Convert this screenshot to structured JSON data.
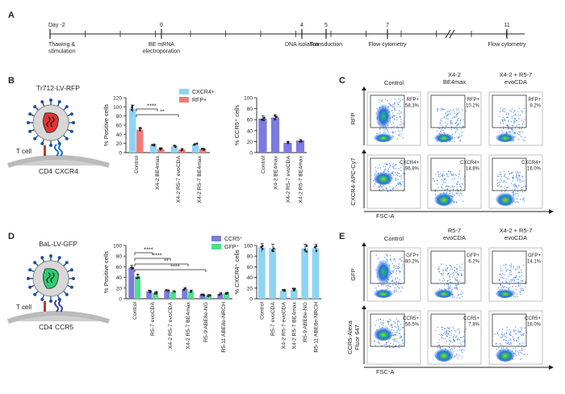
{
  "panel_a": {
    "label": "A",
    "timeline": {
      "ticks": [
        {
          "day": "Day -2",
          "event": "Thawing &\nstimulation"
        },
        {
          "day": "0",
          "event": "BE mRNA\nelectroporation"
        },
        {
          "day": "4",
          "event": "DNA isolation"
        },
        {
          "day": "5",
          "event": "Transduction"
        },
        {
          "day": "7",
          "event": "Flow cytometry"
        },
        {
          "day": "11",
          "event": "Flow cytometry"
        }
      ]
    }
  },
  "panel_b": {
    "label": "B",
    "virus_label": "Tr712-LV-RFP",
    "cell_label": "T cell",
    "receptors": [
      "CD4",
      "CXCR4"
    ]
  },
  "panel_c": {
    "label": "C",
    "columns": [
      "Control",
      "X4-2\nBE4max",
      "X4-2 + R5-7\nevoCDA"
    ],
    "row_labels": [
      "RFP",
      "CXCR4-APC-Cy7"
    ],
    "x_label": "FSC-A",
    "gates": [
      [
        "RFP+\n58.3%",
        "RFP+\n10.2%",
        "RFP+\n9.2%"
      ],
      [
        "CXCR4+\n96.8%",
        "CXCR4+\n14.8%",
        "CXCR4+\n16.0%"
      ]
    ]
  },
  "panel_d": {
    "label": "D",
    "virus_label": "BaL-LV-GFP",
    "cell_label": "T cell",
    "receptors": [
      "CD4",
      "CCR5"
    ]
  },
  "panel_e": {
    "label": "E",
    "columns": [
      "Control",
      "R5-7\nevoCDA",
      "X4-2 + R5-7\nevoCDA"
    ],
    "row_labels": [
      "GFP",
      "CCR5-Alexa\nFluor 647"
    ],
    "x_label": "FSC-A",
    "gates": [
      [
        "GFP+\n40.2%",
        "GFP+\n6.2%",
        "GFP+\n14.1%"
      ],
      [
        "CCR5+\n56.5%",
        "CCR5+\n7.8%",
        "CCR5+\n18.0%"
      ]
    ]
  },
  "chart_data": [
    {
      "id": "B-left",
      "type": "bar",
      "ylabel": "% Positive cells",
      "ylim": [
        0,
        120
      ],
      "yticks": [
        0,
        20,
        40,
        60,
        80,
        100,
        120
      ],
      "categories": [
        "Control",
        "X4-2 BE4max",
        "X4-2 R5-7 evoCDA",
        "X4-2 R5-7 BE4max"
      ],
      "series": [
        {
          "name": "CXCR4+",
          "color": "#8fd3f4",
          "values": [
            96,
            16,
            14,
            18
          ]
        },
        {
          "name": "RFP+",
          "color": "#f27a7a",
          "values": [
            50,
            8,
            7,
            8
          ]
        }
      ],
      "significance": [
        "****",
        "**"
      ]
    },
    {
      "id": "B-right",
      "type": "bar",
      "ylabel": "% CCR5⁺ cells",
      "ylim": [
        0,
        100
      ],
      "yticks": [
        0,
        20,
        40,
        60,
        80,
        100
      ],
      "categories": [
        "Control",
        "X4-2 BE4max",
        "X4-2 R5-7 evoCDA",
        "X4-2 R5-7 BE4max"
      ],
      "series": [
        {
          "color": "#7b7be0",
          "values": [
            62,
            64,
            18,
            22
          ]
        }
      ]
    },
    {
      "id": "D-left",
      "type": "bar",
      "ylabel": "% Positive cells",
      "ylim": [
        0,
        100
      ],
      "yticks": [
        0,
        20,
        40,
        60,
        80,
        100
      ],
      "categories": [
        "Control",
        "R5-7 evoCDA",
        "X4-2 R5-7 evoCDA",
        "X4-2 R5-7 BE4max",
        "R5-9 ABE8e-NG",
        "R5-11 ABE8e-NRCH"
      ],
      "series": [
        {
          "name": "CCR5⁺",
          "color": "#7b7be0",
          "values": [
            58,
            14,
            15,
            18,
            7,
            9
          ]
        },
        {
          "name": "GFP⁺",
          "color": "#4ee08a",
          "values": [
            42,
            11,
            13,
            14,
            6,
            10
          ]
        }
      ],
      "significance": [
        "****",
        "****",
        "**",
        "****"
      ]
    },
    {
      "id": "D-right",
      "type": "bar",
      "ylabel": "% CXCR4⁺ cells",
      "ylim": [
        0,
        100
      ],
      "yticks": [
        0,
        20,
        40,
        60,
        80,
        100
      ],
      "categories": [
        "Control",
        "R5-7 evoCDA",
        "X4-2 R5-7 evoCDA",
        "X4-2 R5-7 BE4max",
        "R5-9 ABE8e-NG",
        "R5-11 ABE8e-NRCH"
      ],
      "series": [
        {
          "color": "#8fd3f4",
          "values": [
            96,
            95,
            15,
            17,
            95,
            95
          ]
        }
      ]
    }
  ]
}
